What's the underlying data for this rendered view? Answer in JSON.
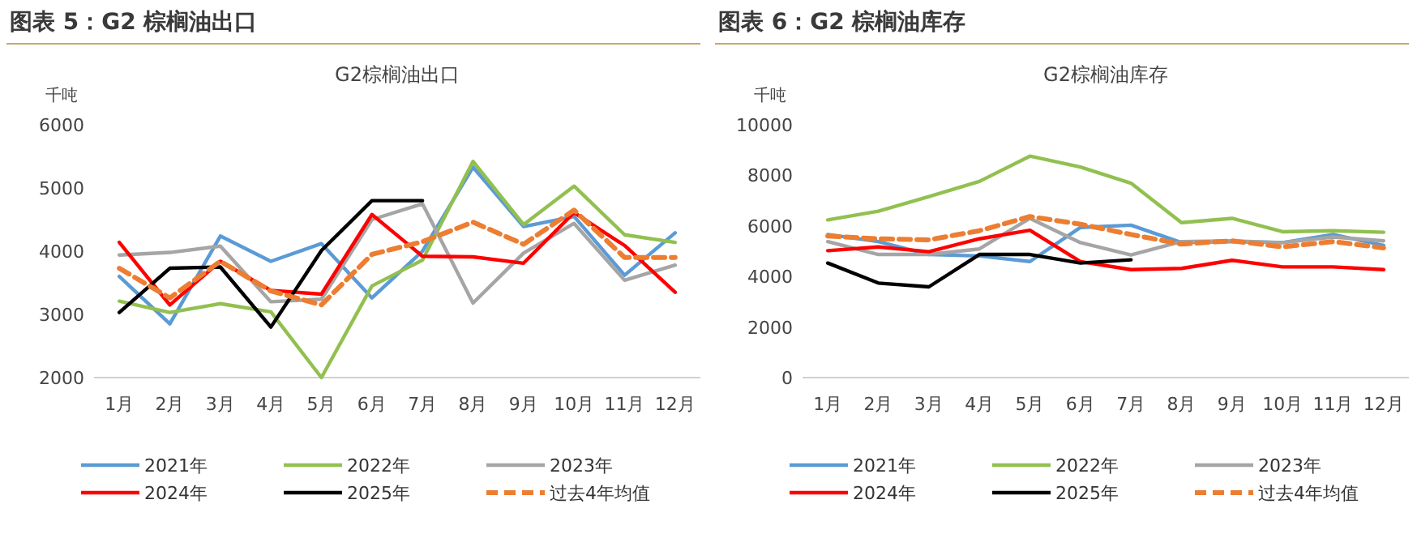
{
  "chart_data": [
    {
      "type": "line",
      "title": "图表 5：G2 棕榈油出口",
      "subtitle": "G2棕榈油出口",
      "ylabel": "千吨",
      "categories": [
        "1月",
        "2月",
        "3月",
        "4月",
        "5月",
        "6月",
        "7月",
        "8月",
        "9月",
        "10月",
        "11月",
        "12月"
      ],
      "ylim": [
        2000,
        6000
      ],
      "yticks": [
        2000,
        3000,
        4000,
        5000,
        6000
      ],
      "legend": "bottom",
      "series": [
        {
          "name": "2021年",
          "color": "#5b9bd5",
          "values": [
            3600,
            2850,
            4240,
            3840,
            4120,
            3260,
            4000,
            5330,
            4390,
            4550,
            3620,
            4290
          ]
        },
        {
          "name": "2022年",
          "color": "#92c050",
          "values": [
            3210,
            3030,
            3170,
            3040,
            2000,
            3450,
            3860,
            5420,
            4420,
            5030,
            4260,
            4140
          ]
        },
        {
          "name": "2023年",
          "color": "#a5a5a5",
          "values": [
            3940,
            3980,
            4080,
            3200,
            3240,
            4500,
            4750,
            3180,
            3970,
            4440,
            3540,
            3780
          ]
        },
        {
          "name": "2024年",
          "color": "#ff0000",
          "values": [
            4140,
            3150,
            3840,
            3380,
            3320,
            4580,
            3920,
            3910,
            3810,
            4610,
            4090,
            3350
          ]
        },
        {
          "name": "2025年",
          "color": "#000000",
          "values": [
            3030,
            3730,
            3750,
            2800,
            4010,
            4800,
            4800,
            null,
            null,
            null,
            null,
            null
          ]
        },
        {
          "name": "过去4年均值",
          "color": "#ed7d31",
          "line_style": "dashed",
          "values": [
            3730,
            3260,
            3840,
            3370,
            3150,
            3950,
            4150,
            4460,
            4110,
            4650,
            3900,
            3900
          ]
        }
      ]
    },
    {
      "type": "line",
      "title": "图表 6：G2 棕榈油库存",
      "subtitle": "G2棕榈油库存",
      "ylabel": "千吨",
      "categories": [
        "1月",
        "2月",
        "3月",
        "4月",
        "5月",
        "6月",
        "7月",
        "8月",
        "9月",
        "10月",
        "11月",
        "12月"
      ],
      "ylim": [
        0,
        10000
      ],
      "yticks": [
        0,
        2000,
        4000,
        6000,
        8000,
        10000
      ],
      "legend": "bottom",
      "series": [
        {
          "name": "2021年",
          "color": "#5b9bd5",
          "values": [
            5660,
            5380,
            4870,
            4810,
            4590,
            5940,
            6030,
            5340,
            5380,
            5340,
            5660,
            5230
          ]
        },
        {
          "name": "2022年",
          "color": "#92c050",
          "values": [
            6240,
            6580,
            7160,
            7760,
            8760,
            8330,
            7690,
            6130,
            6300,
            5770,
            5810,
            5750
          ]
        },
        {
          "name": "2023年",
          "color": "#a5a5a5",
          "values": [
            5380,
            4870,
            4870,
            5090,
            6300,
            5340,
            4850,
            5380,
            5410,
            5340,
            5560,
            5410
          ]
        },
        {
          "name": "2024年",
          "color": "#ff0000",
          "values": [
            5020,
            5170,
            4980,
            5490,
            5830,
            4590,
            4270,
            4320,
            4640,
            4380,
            4380,
            4270
          ]
        },
        {
          "name": "2025年",
          "color": "#000000",
          "values": [
            4530,
            3740,
            3590,
            4870,
            4870,
            4530,
            4660,
            null,
            null,
            null,
            null,
            null
          ]
        },
        {
          "name": "过去4年均值",
          "color": "#ed7d31",
          "line_style": "dashed",
          "values": [
            5600,
            5490,
            5450,
            5810,
            6370,
            6070,
            5660,
            5280,
            5410,
            5170,
            5380,
            5130
          ]
        }
      ]
    }
  ]
}
